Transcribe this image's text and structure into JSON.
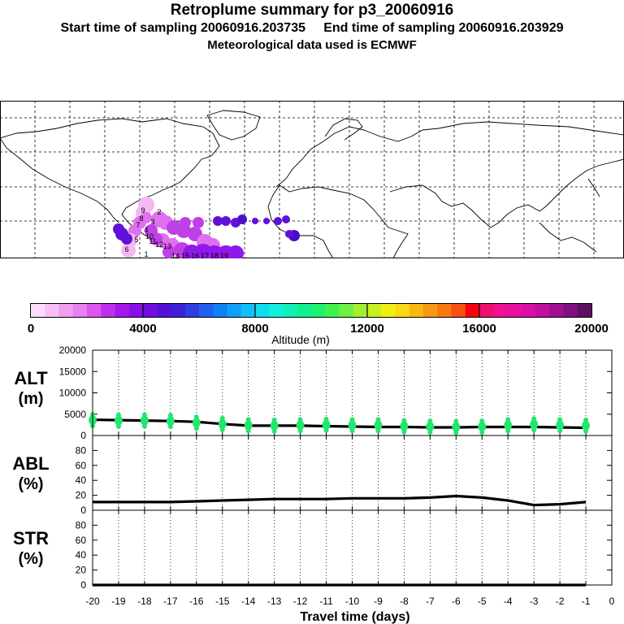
{
  "header": {
    "title": "Retroplume summary for p3_20060916",
    "start_label": "Start time of sampling 20060916.203735",
    "end_label": "End time of sampling 20060916.203929",
    "met_label": "Meteorological data used is ECMWF"
  },
  "map": {
    "plume_labels": [
      "6",
      "5",
      "4",
      "3",
      "2",
      "1",
      "19",
      "18",
      "17",
      "16",
      "15",
      "14",
      "13",
      "12",
      "11",
      "10",
      "9",
      "8",
      "7"
    ],
    "plume_colors": [
      "#f5b8f5",
      "#e070f0",
      "#c040e8",
      "#9018e8",
      "#6010d8",
      "#4810c8"
    ]
  },
  "colorbar": {
    "label": "Altitude (m)",
    "ticks": [
      "0",
      "4000",
      "8000",
      "12000",
      "16000",
      "20000"
    ],
    "colors": [
      "#fbdcfb",
      "#f5c0f5",
      "#efa0ef",
      "#e880ee",
      "#dc55ee",
      "#c030ec",
      "#a418ec",
      "#8a10ea",
      "#7010e0",
      "#5510d8",
      "#4020d6",
      "#3040e0",
      "#2060ee",
      "#1080f5",
      "#10a0f8",
      "#10c0f8",
      "#10dcf0",
      "#10f0e0",
      "#10f0b8",
      "#10f090",
      "#20f070",
      "#40f050",
      "#70f040",
      "#a0f030",
      "#c8f020",
      "#f0f010",
      "#f8d810",
      "#f8b810",
      "#f89810",
      "#f87810",
      "#f85010",
      "#f80010",
      "#f01070",
      "#f01090",
      "#e810a0",
      "#d810a8",
      "#c010a0",
      "#a01090",
      "#801080",
      "#601060"
    ]
  },
  "chart_data": [
    {
      "type": "line",
      "panel_label": [
        "ALT",
        "(m)"
      ],
      "x": [
        -20,
        -19,
        -18,
        -17,
        -16,
        -15,
        -14,
        -13,
        -12,
        -11,
        -10,
        -9,
        -8,
        -7,
        -6,
        -5,
        -4,
        -3,
        -2,
        -1
      ],
      "series": [
        {
          "name": "median altitude",
          "color": "#000000",
          "values": [
            3700,
            3600,
            3500,
            3400,
            3200,
            2700,
            2300,
            2300,
            2300,
            2200,
            2100,
            2000,
            2000,
            1900,
            1900,
            2000,
            2000,
            2000,
            1900,
            1800
          ]
        },
        {
          "name": "particle altitudes",
          "color": "#22e66e",
          "style": "dots",
          "values": [
            3600,
            3500,
            3500,
            3400,
            3000,
            2700,
            2400,
            2300,
            2400,
            2500,
            2400,
            2400,
            2200,
            2100,
            2000,
            2100,
            2400,
            2600,
            2400,
            2300
          ]
        }
      ],
      "ylim": [
        0,
        20000
      ],
      "yticks": [
        "20000",
        "15000",
        "10000",
        "5000",
        "0"
      ]
    },
    {
      "type": "line",
      "panel_label": [
        "ABL",
        "(%)"
      ],
      "x": [
        -20,
        -19,
        -18,
        -17,
        -16,
        -15,
        -14,
        -13,
        -12,
        -11,
        -10,
        -9,
        -8,
        -7,
        -6,
        -5,
        -4,
        -3,
        -2,
        -1
      ],
      "series": [
        {
          "name": "percent in ABL",
          "color": "#000000",
          "values": [
            11,
            11,
            11,
            11,
            12,
            13,
            14,
            15,
            15,
            15,
            16,
            16,
            16,
            17,
            19,
            17,
            13,
            7,
            8,
            11
          ]
        }
      ],
      "ylim": [
        0,
        100
      ],
      "yticks": [
        "80",
        "60",
        "40",
        "20",
        "0"
      ]
    },
    {
      "type": "line",
      "panel_label": [
        "STR",
        "(%)"
      ],
      "x": [
        -20,
        -19,
        -18,
        -17,
        -16,
        -15,
        -14,
        -13,
        -12,
        -11,
        -10,
        -9,
        -8,
        -7,
        -6,
        -5,
        -4,
        -3,
        -2,
        -1
      ],
      "series": [
        {
          "name": "percent in stratosphere",
          "color": "#000000",
          "values": [
            0,
            0,
            0,
            0,
            0,
            0,
            0,
            0,
            0,
            0,
            0,
            0,
            0,
            0,
            0,
            0,
            0,
            0,
            0,
            0
          ]
        }
      ],
      "ylim": [
        0,
        100
      ],
      "yticks": [
        "80",
        "60",
        "40",
        "20",
        "0"
      ]
    }
  ],
  "xaxis": {
    "xlabel": "Travel time (days)",
    "xlim": [
      -20,
      0
    ],
    "ticks": [
      "-20",
      "-19",
      "-18",
      "-17",
      "-16",
      "-15",
      "-14",
      "-13",
      "-12",
      "-11",
      "-10",
      "-9",
      "-8",
      "-7",
      "-6",
      "-5",
      "-4",
      "-3",
      "-2",
      "-1",
      "0"
    ]
  }
}
